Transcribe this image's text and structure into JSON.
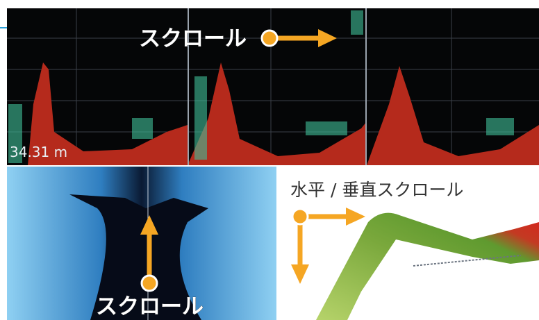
{
  "top_pane": {
    "scroll_label": "スクロール",
    "depth_label": "34.31 m"
  },
  "bottom_left_pane": {
    "scroll_label": "スクロール"
  },
  "bottom_right_pane": {
    "scroll_label": "水平 / 垂直スクロール"
  }
}
